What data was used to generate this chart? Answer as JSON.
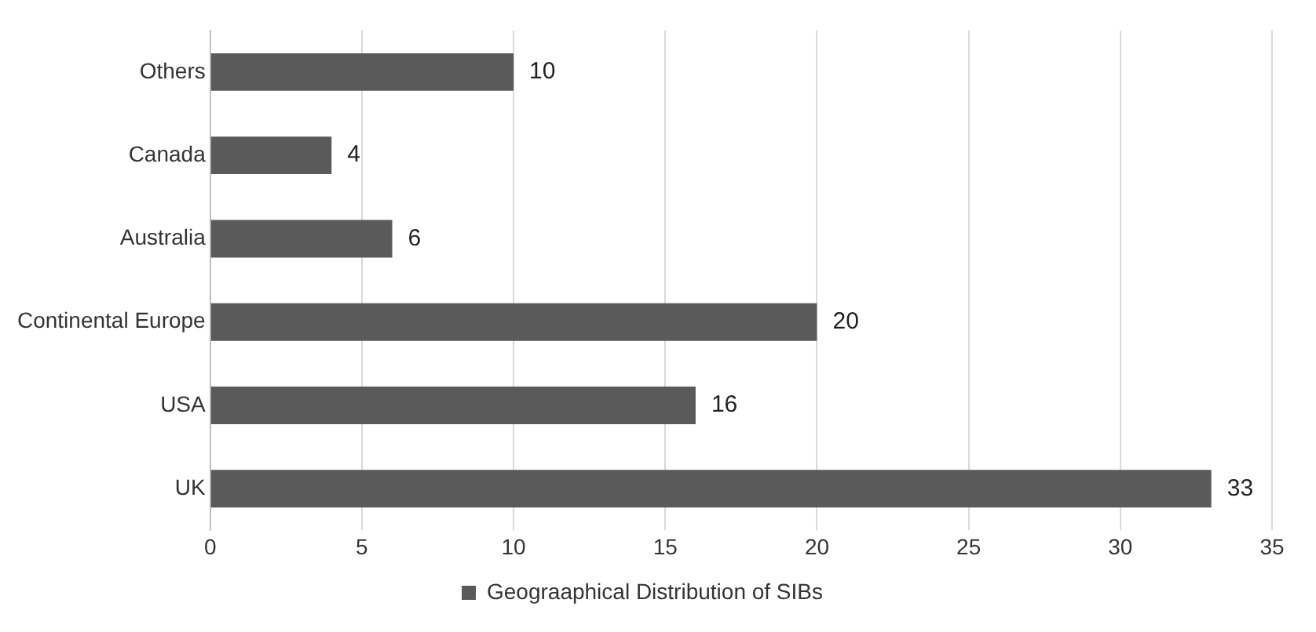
{
  "chart_data": {
    "type": "bar",
    "orientation": "horizontal",
    "categories": [
      "Others",
      "Canada",
      "Australia",
      "Continental Europe",
      "USA",
      "UK"
    ],
    "series": [
      {
        "name": "Geograaphical Distribution of SIBs",
        "color": "#5a5a5a",
        "values": [
          10,
          4,
          6,
          20,
          16,
          33
        ]
      }
    ],
    "xlim": [
      0,
      35
    ],
    "xticks": [
      0,
      5,
      10,
      15,
      20,
      25,
      30,
      35
    ],
    "grid": "x",
    "legend": "bottom",
    "data_labels": true
  }
}
